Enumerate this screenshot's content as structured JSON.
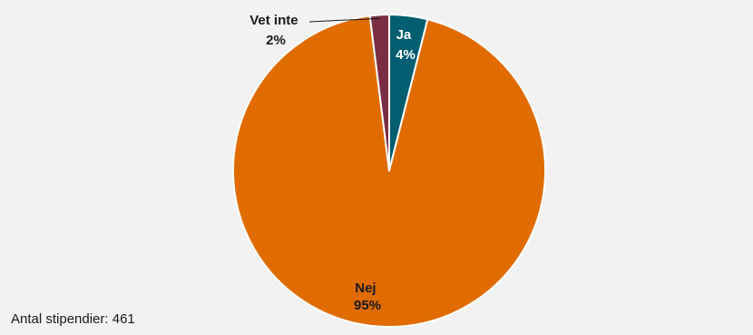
{
  "chart_data": {
    "type": "pie",
    "categories": [
      "Ja",
      "Nej",
      "Vet inte"
    ],
    "values": [
      4,
      95,
      2
    ],
    "value_labels": [
      "4%",
      "95%",
      "2%"
    ],
    "colors": [
      "#005e70",
      "#e06c00",
      "#7a2e43"
    ],
    "title": "",
    "legend": "none",
    "start_angle_deg": 0,
    "direction": "clockwise"
  },
  "footnote": "Antal stipendier: 461",
  "colors": {
    "background": "#f2f2f2",
    "label_light": "#ffffff",
    "label_dark": "#1a1a1a"
  }
}
